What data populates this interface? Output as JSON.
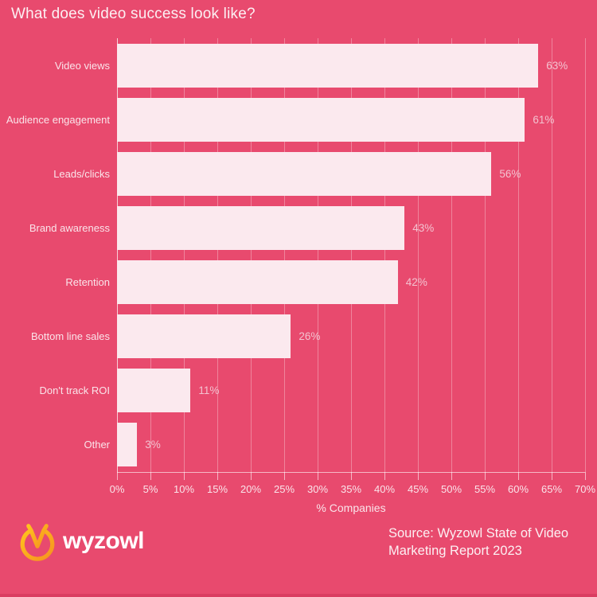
{
  "title": "What does video success look like?",
  "chart_data": {
    "type": "bar",
    "orientation": "horizontal",
    "title": "What does video success look like?",
    "categories": [
      "Video views",
      "Audience engagement",
      "Leads/clicks",
      "Brand awareness",
      "Retention",
      "Bottom line sales",
      "Don't track ROI",
      "Other"
    ],
    "values": [
      63,
      61,
      56,
      43,
      42,
      26,
      11,
      3
    ],
    "value_labels": [
      "63%",
      "61%",
      "56%",
      "43%",
      "42%",
      "26%",
      "11%",
      "3%"
    ],
    "xlabel": "% Companies",
    "ylabel": "",
    "xlim": [
      0,
      70
    ],
    "x_tick_values": [
      0,
      5,
      10,
      15,
      20,
      25,
      30,
      35,
      40,
      45,
      50,
      55,
      60,
      65,
      70
    ],
    "x_tick_labels": [
      "0%",
      "5%",
      "10%",
      "15%",
      "20%",
      "25%",
      "30%",
      "35%",
      "40%",
      "45%",
      "50%",
      "55%",
      "60%",
      "65%",
      "70%"
    ],
    "grid": true,
    "legend": false
  },
  "footer": {
    "logo_text": "wyzowl",
    "source_line1": "Source: Wyzowl State of Video",
    "source_line2": "Marketing Report 2023"
  },
  "colors": {
    "background": "#e84a6e",
    "bar_fill": "#fbe9ee",
    "gridline": "rgba(255,255,255,0.32)",
    "axis": "rgba(255,255,255,0.6)",
    "title_text": "#fcf0f3",
    "label_text": "#fae4ea",
    "value_text": "#f3c2d0",
    "logo_orange": "#f9a21c",
    "bottom_strip": "#da3d61"
  }
}
